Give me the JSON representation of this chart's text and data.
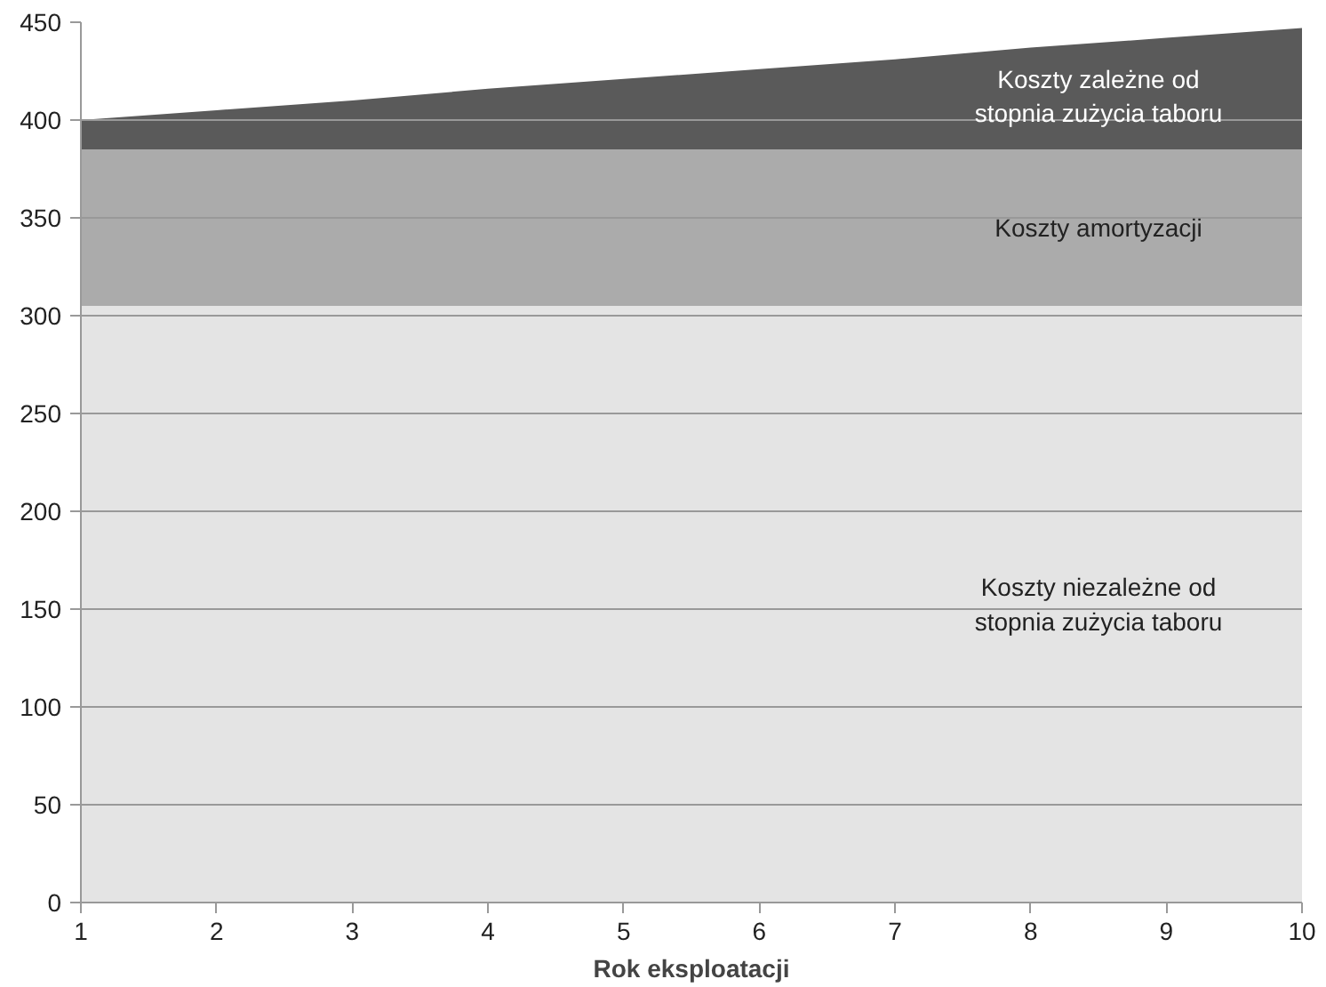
{
  "chart_data": {
    "type": "area",
    "stacked": true,
    "xlabel": "Rok eksploatacji",
    "x": [
      1,
      2,
      3,
      4,
      5,
      6,
      7,
      8,
      9,
      10
    ],
    "series": [
      {
        "name": "Koszty niezależne od\nstopnia zużycia taboru",
        "color": "#e4e4e4",
        "values": [
          305,
          305,
          305,
          305,
          305,
          305,
          305,
          305,
          305,
          305
        ]
      },
      {
        "name": "Koszty amortyzacji",
        "color": "#ababab",
        "values": [
          80,
          80,
          80,
          80,
          80,
          80,
          80,
          80,
          80,
          80
        ]
      },
      {
        "name": "Koszty zależne od\nstopnia zużycia taboru",
        "color": "#5a5a5a",
        "values": [
          15,
          20,
          25,
          31,
          36,
          41,
          46,
          52,
          57,
          62
        ]
      }
    ],
    "xlim": [
      1,
      10
    ],
    "xticks": [
      1,
      2,
      3,
      4,
      5,
      6,
      7,
      8,
      9,
      10
    ],
    "ylim": [
      0,
      450
    ],
    "yticks": [
      0,
      50,
      100,
      150,
      200,
      250,
      300,
      350,
      400,
      450
    ],
    "grid": "y"
  }
}
